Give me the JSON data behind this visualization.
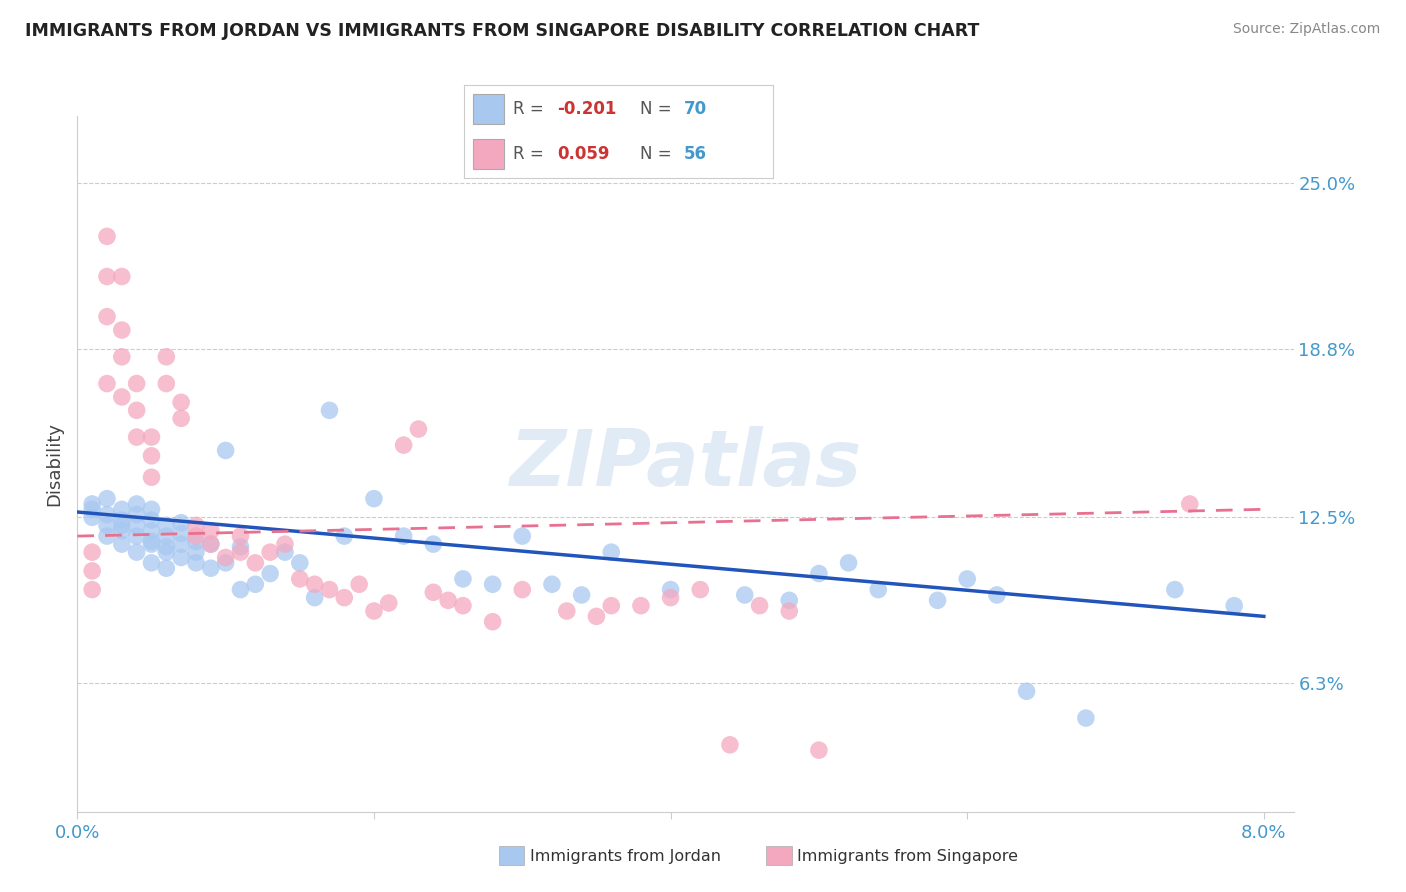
{
  "title": "IMMIGRANTS FROM JORDAN VS IMMIGRANTS FROM SINGAPORE DISABILITY CORRELATION CHART",
  "source": "Source: ZipAtlas.com",
  "xlim": [
    0.0,
    0.082
  ],
  "ylim": [
    0.015,
    0.275
  ],
  "ylabel_values": [
    0.063,
    0.125,
    0.188,
    0.25
  ],
  "ylabel_labels": [
    "6.3%",
    "12.5%",
    "18.8%",
    "25.0%"
  ],
  "xtick_vals": [
    0.0,
    0.02,
    0.04,
    0.06,
    0.08
  ],
  "xtick_labs": [
    "0.0%",
    "",
    "",
    "",
    "8.0%"
  ],
  "jordan_color": "#A8C8F0",
  "singapore_color": "#F4A8C0",
  "jordan_line_color": "#2255BB",
  "singapore_line_color": "#E87090",
  "jordan_R": -0.201,
  "jordan_N": 70,
  "singapore_R": 0.059,
  "singapore_N": 56,
  "watermark": "ZIPatlas",
  "background_color": "#FFFFFF",
  "grid_color": "#CCCCCC",
  "tick_color": "#4499CC",
  "ylabel_text": "Disability",
  "legend_jordan": "Immigrants from Jordan",
  "legend_singapore": "Immigrants from Singapore",
  "jordan_x": [
    0.001,
    0.001,
    0.001,
    0.002,
    0.002,
    0.002,
    0.002,
    0.003,
    0.003,
    0.003,
    0.003,
    0.003,
    0.004,
    0.004,
    0.004,
    0.004,
    0.004,
    0.005,
    0.005,
    0.005,
    0.005,
    0.005,
    0.005,
    0.006,
    0.006,
    0.006,
    0.006,
    0.006,
    0.007,
    0.007,
    0.007,
    0.007,
    0.008,
    0.008,
    0.008,
    0.009,
    0.009,
    0.01,
    0.01,
    0.011,
    0.011,
    0.012,
    0.013,
    0.014,
    0.015,
    0.016,
    0.017,
    0.018,
    0.02,
    0.022,
    0.024,
    0.026,
    0.028,
    0.03,
    0.032,
    0.034,
    0.036,
    0.04,
    0.045,
    0.048,
    0.05,
    0.052,
    0.054,
    0.058,
    0.06,
    0.062,
    0.064,
    0.068,
    0.074,
    0.078
  ],
  "jordan_y": [
    0.13,
    0.125,
    0.128,
    0.122,
    0.126,
    0.118,
    0.132,
    0.12,
    0.124,
    0.115,
    0.128,
    0.122,
    0.118,
    0.122,
    0.126,
    0.112,
    0.13,
    0.116,
    0.12,
    0.124,
    0.115,
    0.128,
    0.108,
    0.114,
    0.118,
    0.122,
    0.112,
    0.106,
    0.115,
    0.119,
    0.123,
    0.11,
    0.112,
    0.116,
    0.108,
    0.115,
    0.106,
    0.15,
    0.108,
    0.098,
    0.114,
    0.1,
    0.104,
    0.112,
    0.108,
    0.095,
    0.165,
    0.118,
    0.132,
    0.118,
    0.115,
    0.102,
    0.1,
    0.118,
    0.1,
    0.096,
    0.112,
    0.098,
    0.096,
    0.094,
    0.104,
    0.108,
    0.098,
    0.094,
    0.102,
    0.096,
    0.06,
    0.05,
    0.098,
    0.092
  ],
  "singapore_x": [
    0.001,
    0.001,
    0.001,
    0.002,
    0.002,
    0.002,
    0.002,
    0.003,
    0.003,
    0.003,
    0.003,
    0.004,
    0.004,
    0.004,
    0.005,
    0.005,
    0.005,
    0.006,
    0.006,
    0.007,
    0.007,
    0.008,
    0.008,
    0.009,
    0.009,
    0.01,
    0.011,
    0.011,
    0.012,
    0.013,
    0.014,
    0.015,
    0.016,
    0.017,
    0.018,
    0.019,
    0.02,
    0.021,
    0.022,
    0.023,
    0.024,
    0.025,
    0.026,
    0.028,
    0.03,
    0.033,
    0.036,
    0.04,
    0.044,
    0.048,
    0.035,
    0.038,
    0.042,
    0.046,
    0.075,
    0.05
  ],
  "singapore_y": [
    0.112,
    0.098,
    0.105,
    0.23,
    0.215,
    0.2,
    0.175,
    0.215,
    0.195,
    0.17,
    0.185,
    0.165,
    0.175,
    0.155,
    0.148,
    0.155,
    0.14,
    0.185,
    0.175,
    0.162,
    0.168,
    0.118,
    0.122,
    0.115,
    0.12,
    0.11,
    0.118,
    0.112,
    0.108,
    0.112,
    0.115,
    0.102,
    0.1,
    0.098,
    0.095,
    0.1,
    0.09,
    0.093,
    0.152,
    0.158,
    0.097,
    0.094,
    0.092,
    0.086,
    0.098,
    0.09,
    0.092,
    0.095,
    0.04,
    0.09,
    0.088,
    0.092,
    0.098,
    0.092,
    0.13,
    0.038
  ],
  "jordan_line_x": [
    0.0,
    0.08
  ],
  "jordan_line_y": [
    0.127,
    0.088
  ],
  "singapore_line_x": [
    0.0,
    0.08
  ],
  "singapore_line_y": [
    0.118,
    0.128
  ]
}
